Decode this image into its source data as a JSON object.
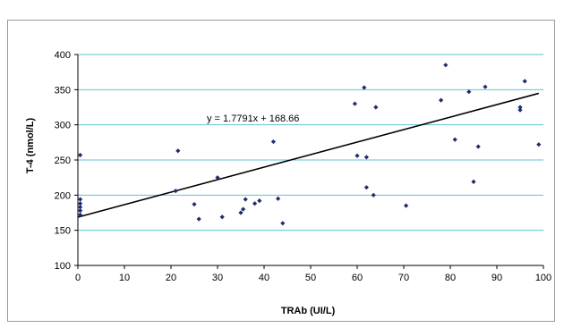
{
  "chart_data": {
    "type": "scatter",
    "title": "",
    "xlabel": "TRAb (UI/L)",
    "ylabel": "T-4 (nmol/L)",
    "xlim": [
      0,
      100
    ],
    "ylim": [
      100,
      400
    ],
    "xticks": [
      0,
      10,
      20,
      30,
      40,
      50,
      60,
      70,
      80,
      90,
      100
    ],
    "yticks": [
      100,
      150,
      200,
      250,
      300,
      350,
      400
    ],
    "grid": "horizontal",
    "point_color": "#1f2d6e",
    "grid_color": "#5bc4d6",
    "line_color": "#000000",
    "trendline": {
      "slope": 1.7791,
      "intercept": 168.66,
      "x_range": [
        0,
        99
      ],
      "label": "y = 1.7791x + 168.66"
    },
    "series": [
      {
        "points": [
          [
            0.5,
            257
          ],
          [
            0.5,
            194
          ],
          [
            0.5,
            188
          ],
          [
            0.5,
            183
          ],
          [
            0.5,
            178
          ],
          [
            0.5,
            172
          ],
          [
            21,
            206
          ],
          [
            21.5,
            263
          ],
          [
            25,
            187
          ],
          [
            26,
            166
          ],
          [
            30,
            225
          ],
          [
            31,
            169
          ],
          [
            35,
            175
          ],
          [
            35.5,
            180
          ],
          [
            36,
            194
          ],
          [
            38,
            188
          ],
          [
            39,
            192
          ],
          [
            42,
            276
          ],
          [
            43,
            195
          ],
          [
            44,
            160
          ],
          [
            59.5,
            330
          ],
          [
            60,
            256
          ],
          [
            61.5,
            353
          ],
          [
            62,
            254
          ],
          [
            62,
            211
          ],
          [
            63.5,
            200
          ],
          [
            64,
            325
          ],
          [
            70.5,
            185
          ],
          [
            78,
            335
          ],
          [
            79,
            385
          ],
          [
            81,
            279
          ],
          [
            84,
            347
          ],
          [
            85,
            219
          ],
          [
            86,
            269
          ],
          [
            87.5,
            354
          ],
          [
            95,
            325
          ],
          [
            95,
            321
          ],
          [
            96,
            362
          ],
          [
            99,
            272
          ]
        ]
      }
    ]
  }
}
